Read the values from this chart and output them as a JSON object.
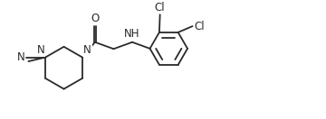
{
  "bg_color": "#ffffff",
  "line_color": "#2a2a2a",
  "text_color": "#2a2a2a",
  "line_width": 1.3,
  "font_size": 8.5,
  "figsize": [
    3.6,
    1.32
  ],
  "dpi": 100,
  "xlim": [
    0.0,
    9.5
  ],
  "ylim": [
    0.3,
    3.5
  ]
}
